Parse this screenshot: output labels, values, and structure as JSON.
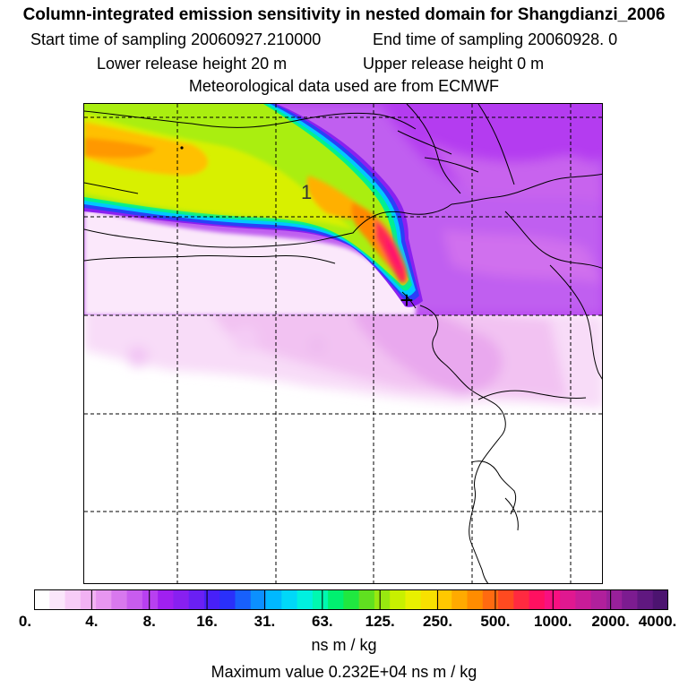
{
  "header": {
    "title": "Column-integrated emission sensitivity in nested domain for Shangdianzi_2006",
    "start_sampling": "Start time of sampling 20060927.210000",
    "end_sampling": "End time of sampling 20060928.     0",
    "lower_release": "Lower release height   20 m",
    "upper_release": "Upper release height    0 m",
    "met_data": "Meteorological data used are from ECMWF"
  },
  "map": {
    "contour_label": "1",
    "receptor_marker": "+"
  },
  "colorbar": {
    "tick_labels": [
      "0.",
      "4.",
      "8.",
      "16.",
      "31.",
      "63.",
      "125.",
      "250.",
      "500.",
      "1000.",
      "2000.",
      "4000."
    ],
    "colors": [
      "#ffffff",
      "#fbe6fb",
      "#f7ccf7",
      "#f2b2f3",
      "#e796f0",
      "#d878ee",
      "#c85cee",
      "#b840f0",
      "#a020f0",
      "#8820f0",
      "#6a20f4",
      "#4820f8",
      "#2a30fa",
      "#1860fc",
      "#0c90fe",
      "#00b8ff",
      "#00d8f8",
      "#00f0e0",
      "#00f8b0",
      "#00f070",
      "#20e840",
      "#60e020",
      "#98e810",
      "#c8f000",
      "#e8f000",
      "#f8e000",
      "#ffc800",
      "#ffaa00",
      "#ff8c00",
      "#ff6a10",
      "#ff4a20",
      "#ff2a40",
      "#ff1060",
      "#f81080",
      "#e01890",
      "#c81c98",
      "#b0209c",
      "#98209a",
      "#7c1c90",
      "#601880",
      "#4c1470"
    ],
    "units": "ns m / kg"
  },
  "footer": {
    "max_value": "Maximum value  0.232E+04 ns m / kg"
  }
}
